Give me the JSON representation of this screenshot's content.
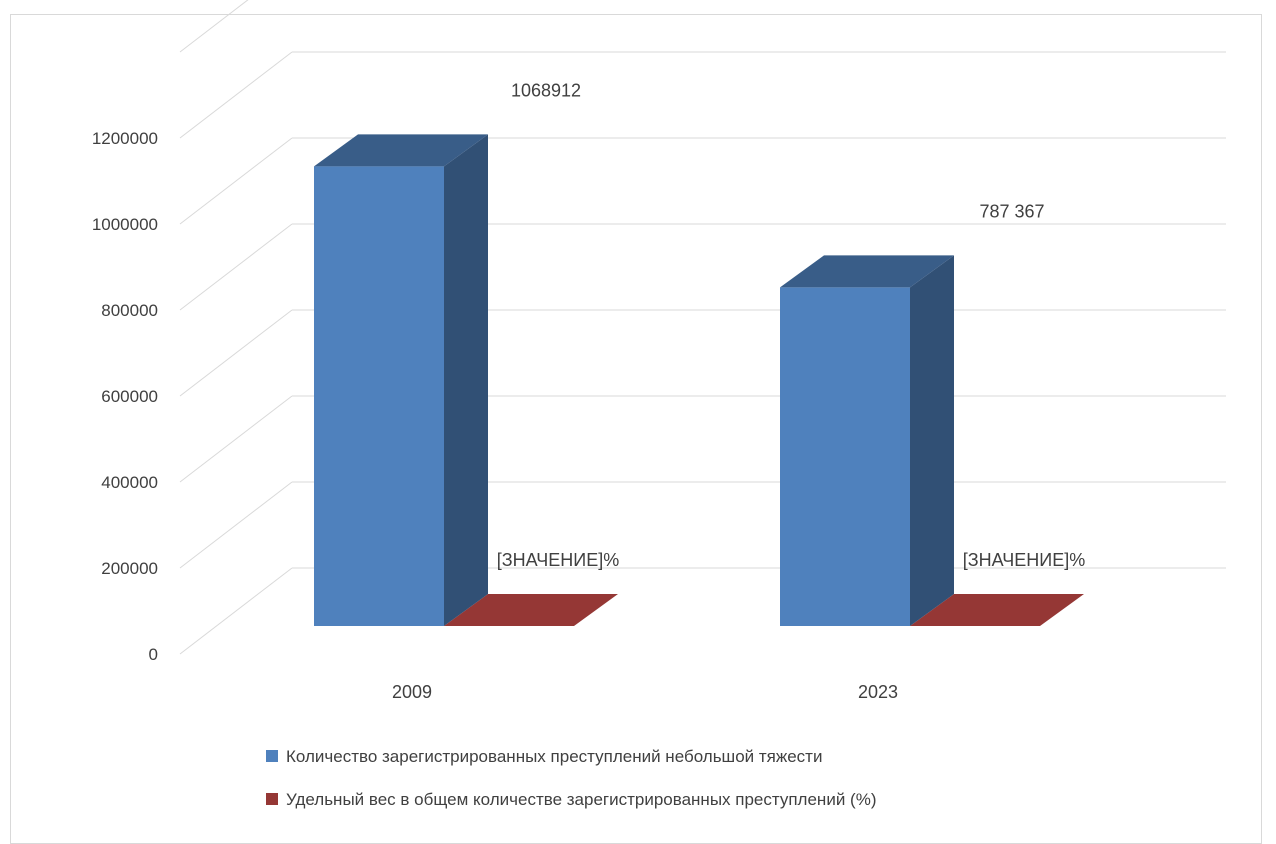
{
  "chart_data": {
    "type": "bar",
    "three_d": true,
    "categories": [
      "2009",
      "2023"
    ],
    "series": [
      {
        "name": "Количество зарегистрированных преступлений небольшой тяжести",
        "color": "#4f81bd",
        "values": [
          1068912,
          787367
        ],
        "data_labels": [
          "1068912",
          "787 367"
        ]
      },
      {
        "name": "Удельный вес в общем количестве зарегистрированных преступлений (%)",
        "color": "#953735",
        "values": [
          0,
          0
        ],
        "data_labels": [
          "[ЗНАЧЕНИЕ]%",
          "[ЗНАЧЕНИЕ]%"
        ]
      }
    ],
    "y_ticks": [
      "0",
      "200000",
      "400000",
      "600000",
      "800000",
      "1000000",
      "1200000"
    ],
    "ylim": [
      0,
      1400000
    ],
    "grid": true,
    "legend_position": "bottom"
  }
}
